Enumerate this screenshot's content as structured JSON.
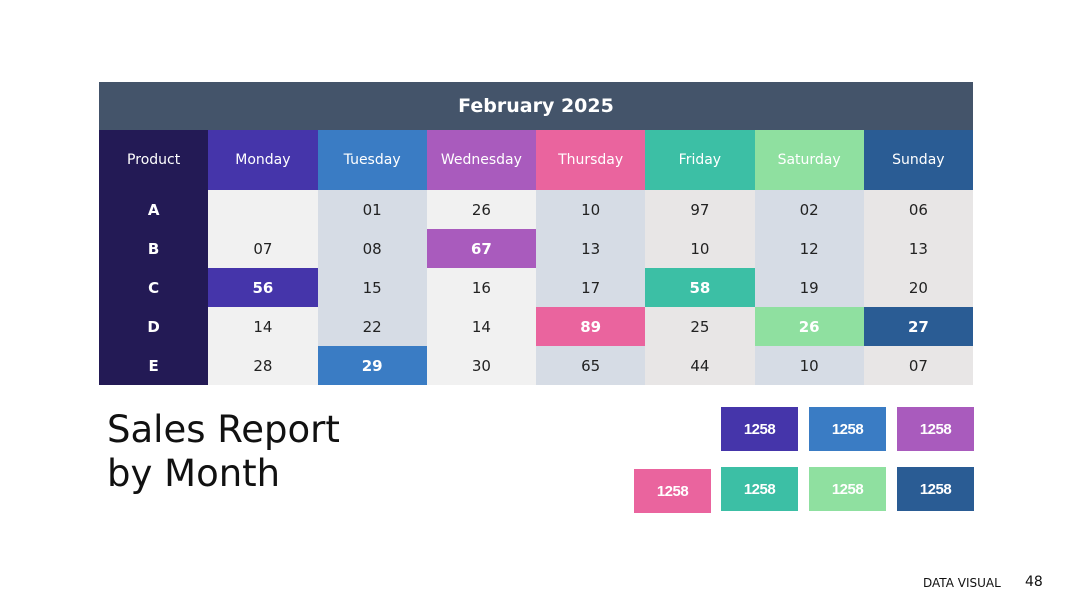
{
  "table": {
    "title": "February 2025",
    "corner": "Product",
    "columns": [
      {
        "name": "Monday",
        "color": "#4535aa",
        "bg": "#f1f1f1"
      },
      {
        "name": "Tuesday",
        "color": "#3a7cc4",
        "bg": "#d6dce5"
      },
      {
        "name": "Wednesday",
        "color": "#a95bbd",
        "bg": "#f1f1f1"
      },
      {
        "name": "Thursday",
        "color": "#ea649e",
        "bg": "#d6dce5"
      },
      {
        "name": "Friday",
        "color": "#3cbfa5",
        "bg": "#e8e6e6"
      },
      {
        "name": "Saturday",
        "color": "#8fe0a0",
        "bg": "#d6dce5"
      },
      {
        "name": "Sunday",
        "color": "#2a5c94",
        "bg": "#e8e6e6"
      }
    ],
    "rows": [
      {
        "product": "A",
        "cells": [
          null,
          "01",
          "26",
          "10",
          "97",
          "02",
          "06"
        ],
        "highlight": []
      },
      {
        "product": "B",
        "cells": [
          "07",
          "08",
          "67",
          "13",
          "10",
          "12",
          "13"
        ],
        "highlight": [
          2
        ]
      },
      {
        "product": "C",
        "cells": [
          "56",
          "15",
          "16",
          "17",
          "58",
          "19",
          "20"
        ],
        "highlight": [
          0,
          4
        ]
      },
      {
        "product": "D",
        "cells": [
          "14",
          "22",
          "14",
          "89",
          "25",
          "26",
          "27"
        ],
        "highlight": [
          3,
          5,
          6
        ]
      },
      {
        "product": "E",
        "cells": [
          "28",
          "29",
          "30",
          "65",
          "44",
          "10",
          "07"
        ],
        "highlight": [
          1
        ]
      }
    ]
  },
  "heading": "Sales Report by Month",
  "badges": [
    {
      "text": "1258",
      "color": "#4535aa"
    },
    {
      "text": "1258",
      "color": "#3a7cc4"
    },
    {
      "text": "1258",
      "color": "#a95bbd"
    },
    {
      "text": "1258",
      "color": "#ea649e"
    },
    {
      "text": "1258",
      "color": "#3cbfa5"
    },
    {
      "text": "1258",
      "color": "#8fe0a0"
    },
    {
      "text": "1258",
      "color": "#2a5c94"
    }
  ],
  "footer": {
    "label": "DATA VISUAL",
    "page": "48"
  }
}
